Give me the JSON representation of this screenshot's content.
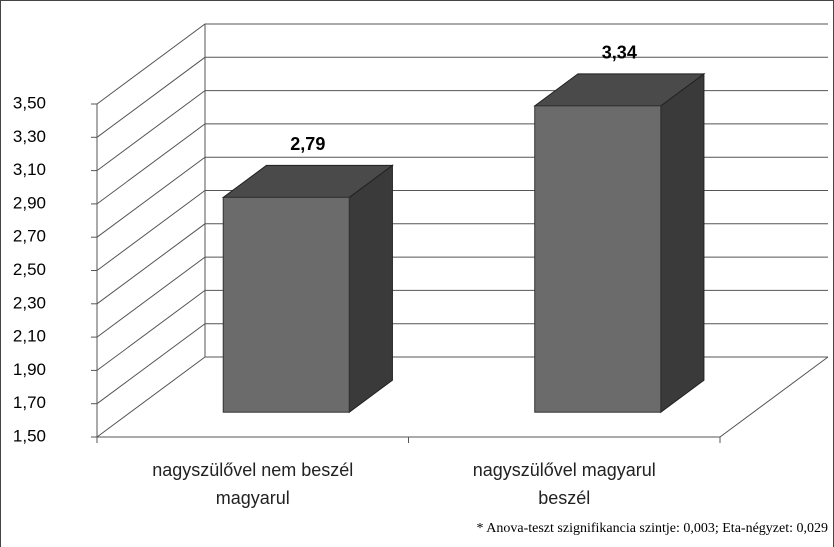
{
  "chart_data": {
    "type": "bar3d",
    "categories": [
      "nagyszülővel nem beszél magyarul",
      "nagyszülővel magyarul beszél"
    ],
    "values": [
      2.79,
      3.34
    ],
    "value_labels": [
      "2,79",
      "3,34"
    ],
    "color": "#6b6b6b",
    "ylim": [
      1.5,
      3.5
    ],
    "yticks": [
      {
        "value": 1.5,
        "label": "1,50"
      },
      {
        "value": 1.7,
        "label": "1,70"
      },
      {
        "value": 1.9,
        "label": "1,90"
      },
      {
        "value": 2.1,
        "label": "2,10"
      },
      {
        "value": 2.3,
        "label": "2,30"
      },
      {
        "value": 2.5,
        "label": "2,50"
      },
      {
        "value": 2.7,
        "label": "2,70"
      },
      {
        "value": 2.9,
        "label": "2,90"
      },
      {
        "value": 3.1,
        "label": "3,10"
      },
      {
        "value": 3.3,
        "label": "3,30"
      },
      {
        "value": 3.5,
        "label": "3,50"
      }
    ],
    "grid": true,
    "annotation": "* Anova-teszt szignifikancia szintje: 0,003; Eta-négyzet: 0,029"
  }
}
